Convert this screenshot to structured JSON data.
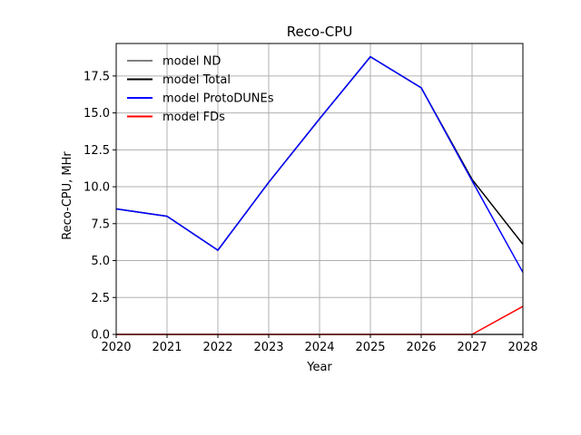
{
  "chart_data": {
    "type": "line",
    "title": "Reco-CPU",
    "xlabel": "Year",
    "ylabel": "Reco-CPU, MHr",
    "xlim": [
      2020,
      2028
    ],
    "ylim": [
      0,
      19.7
    ],
    "x": [
      2020,
      2021,
      2022,
      2023,
      2024,
      2025,
      2026,
      2027,
      2028
    ],
    "x_ticks": [
      "2020",
      "2021",
      "2022",
      "2023",
      "2024",
      "2025",
      "2026",
      "2027",
      "2028"
    ],
    "y_ticks": [
      "0.0",
      "2.5",
      "5.0",
      "7.5",
      "10.0",
      "12.5",
      "15.0",
      "17.5"
    ],
    "grid": true,
    "legend_position": "upper-left",
    "series": [
      {
        "name": "model ND",
        "color": "#808080",
        "values": [
          0,
          0,
          0,
          0,
          0,
          0,
          0,
          0,
          0
        ]
      },
      {
        "name": "model Total",
        "color": "#000000",
        "values": [
          8.5,
          8.0,
          5.7,
          10.3,
          14.6,
          18.8,
          16.7,
          10.5,
          6.1
        ]
      },
      {
        "name": "model ProtoDUNEs",
        "color": "#0000ff",
        "values": [
          8.5,
          8.0,
          5.7,
          10.3,
          14.6,
          18.8,
          16.7,
          10.4,
          4.2
        ]
      },
      {
        "name": "model FDs",
        "color": "#ff0000",
        "values": [
          0,
          0,
          0,
          0,
          0,
          0,
          0,
          0,
          1.9
        ]
      }
    ]
  }
}
